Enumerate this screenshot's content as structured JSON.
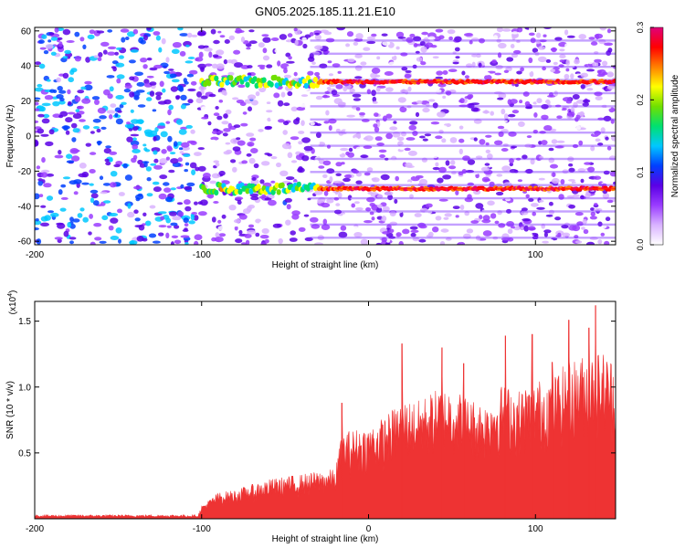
{
  "title": "GN05.2025.185.11.21.E10",
  "chart_data": [
    {
      "type": "heatmap",
      "xlabel": "Height of straight line (km)",
      "ylabel": "Frequency (Hz)",
      "xlim": [
        -200,
        148
      ],
      "ylim": [
        -62,
        62
      ],
      "xticks": [
        -200,
        -100,
        0,
        100
      ],
      "yticks": [
        -60,
        -40,
        -20,
        0,
        20,
        40,
        60
      ],
      "colorbar": {
        "label": "Normalized spectral amplitude",
        "range": [
          0.0,
          0.3
        ],
        "ticks": [
          "0.0",
          "0.1",
          "0.2",
          "0.3"
        ],
        "colors": [
          "#ffffff",
          "#d9b3ff",
          "#9a3cff",
          "#5a00e6",
          "#0040ff",
          "#00c8ff",
          "#00e070",
          "#70e000",
          "#ffff00",
          "#ff8000",
          "#ff0000",
          "#e0007a"
        ]
      },
      "bands": [
        {
          "frequency_hz": 31,
          "x_start": -100,
          "x_end": 148,
          "peak_amplitude": 0.3
        },
        {
          "frequency_hz": -30,
          "x_start": -100,
          "x_end": 148,
          "peak_amplitude": 0.3
        }
      ],
      "grid": false
    },
    {
      "type": "area",
      "xlabel": "Height of straight line (km)",
      "ylabel": "SNR (10 * v/v)",
      "y_multiplier": "(x10",
      "y_multiplier_exp": "4",
      "y_multiplier_close": ")",
      "xlim": [
        -200,
        148
      ],
      "ylim": [
        0,
        1.65
      ],
      "xticks": [
        -200,
        -100,
        0,
        100
      ],
      "yticks": [
        "0.5",
        "1.0",
        "1.5"
      ],
      "color": "#ee3333",
      "envelope": {
        "x": [
          -200,
          -150,
          -102,
          -100,
          -90,
          -80,
          -60,
          -40,
          -30,
          -20,
          -16,
          -10,
          0,
          10,
          20,
          30,
          40,
          50,
          60,
          70,
          80,
          90,
          100,
          110,
          120,
          130,
          140,
          148
        ],
        "y": [
          0.03,
          0.03,
          0.03,
          0.1,
          0.2,
          0.22,
          0.3,
          0.34,
          0.36,
          0.38,
          0.65,
          0.68,
          0.7,
          0.78,
          0.9,
          0.9,
          0.98,
          1.0,
          0.92,
          0.88,
          1.02,
          0.98,
          1.05,
          1.08,
          1.2,
          1.25,
          1.28,
          1.2
        ]
      },
      "peaks": [
        {
          "x": -16,
          "y": 0.88
        },
        {
          "x": 20,
          "y": 1.33
        },
        {
          "x": 44,
          "y": 1.3
        },
        {
          "x": 57,
          "y": 1.18
        },
        {
          "x": 82,
          "y": 1.39
        },
        {
          "x": 98,
          "y": 1.4
        },
        {
          "x": 110,
          "y": 1.19
        },
        {
          "x": 120,
          "y": 1.51
        },
        {
          "x": 132,
          "y": 1.45
        },
        {
          "x": 136,
          "y": 1.62
        }
      ],
      "grid": false
    }
  ]
}
